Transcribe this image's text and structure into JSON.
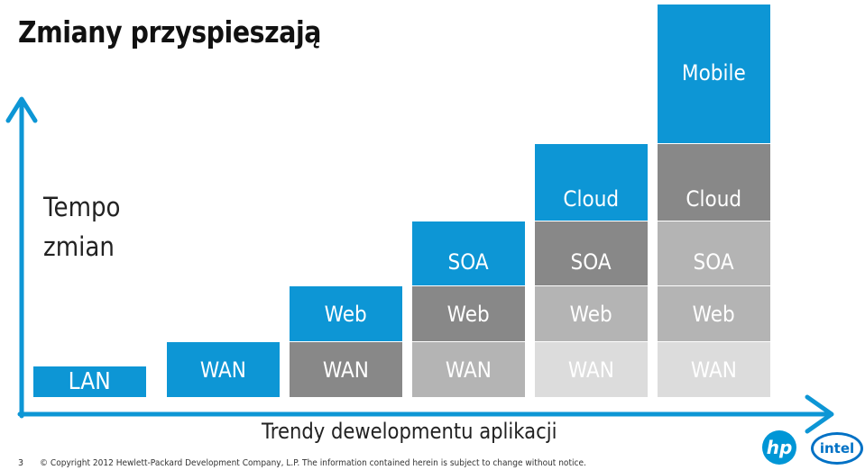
{
  "title": "Zmiany przyspieszają",
  "y_axis_label": [
    "Tempo",
    "zmian"
  ],
  "x_axis_label": "Trendy dewelopmentu aplikacji",
  "colors": {
    "blue": "#0d96d5",
    "gray_mid": "#888888",
    "gray_light": "#b4b4b4",
    "gray_pale": "#dcdcdc",
    "axis": "#0d96d5"
  },
  "columns": [
    {
      "layers": [
        {
          "label": "LAN",
          "tone": "blue"
        }
      ]
    },
    {
      "layers": [
        {
          "label": "WAN",
          "tone": "blue"
        }
      ]
    },
    {
      "layers": [
        {
          "label": "WAN",
          "tone": "gray_mid"
        },
        {
          "label": "Web",
          "tone": "blue"
        }
      ]
    },
    {
      "layers": [
        {
          "label": "WAN",
          "tone": "gray_light"
        },
        {
          "label": "Web",
          "tone": "gray_mid"
        },
        {
          "label": "SOA",
          "tone": "blue"
        }
      ]
    },
    {
      "layers": [
        {
          "label": "WAN",
          "tone": "gray_pale"
        },
        {
          "label": "Web",
          "tone": "gray_light"
        },
        {
          "label": "SOA",
          "tone": "gray_mid"
        },
        {
          "label": "Cloud",
          "tone": "blue"
        }
      ]
    },
    {
      "layers": [
        {
          "label": "WAN",
          "tone": "gray_pale"
        },
        {
          "label": "Web",
          "tone": "gray_light"
        },
        {
          "label": "SOA",
          "tone": "gray_light"
        },
        {
          "label": "Cloud",
          "tone": "gray_mid"
        },
        {
          "label": "Mobile",
          "tone": "blue"
        }
      ]
    }
  ],
  "footer": {
    "page_number": "3",
    "copyright": "© Copyright 2012 Hewlett-Packard Development Company, L.P. The information contained herein is subject to change without notice."
  },
  "logos": {
    "hp": "hp",
    "intel": "intel"
  }
}
